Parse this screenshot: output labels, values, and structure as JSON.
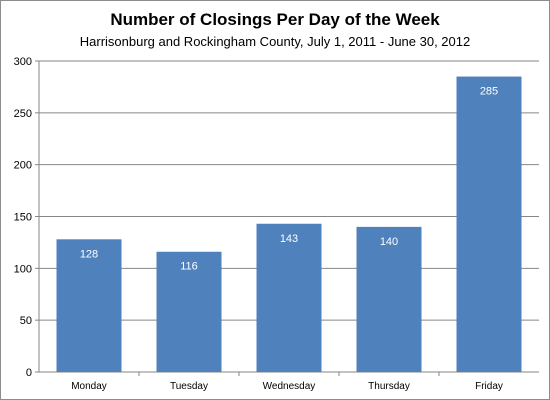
{
  "chart_data": {
    "type": "bar",
    "title": "Number of Closings Per Day of the Week",
    "subtitle": "Harrisonburg  and Rockingham County, July 1, 2011 - June 30, 2012",
    "categories": [
      "Monday",
      "Tuesday",
      "Wednesday",
      "Thursday",
      "Friday"
    ],
    "values": [
      128,
      116,
      143,
      140,
      285
    ],
    "data_labels": [
      "128",
      "116",
      "143",
      "140",
      "285"
    ],
    "ylim": [
      0,
      300
    ],
    "yticks": [
      0,
      50,
      100,
      150,
      200,
      250,
      300
    ],
    "grid": true,
    "legend": "none",
    "bar_color": "#4f81bd",
    "grid_color": "#868686"
  }
}
